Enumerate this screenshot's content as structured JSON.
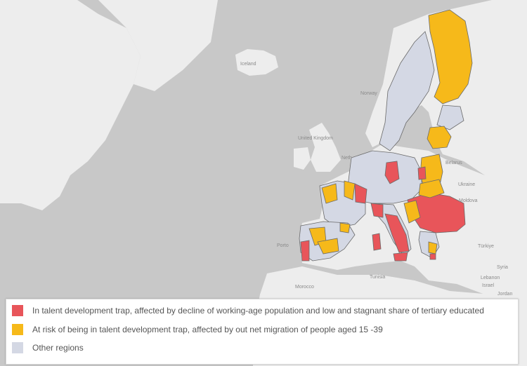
{
  "map": {
    "colors": {
      "sea": "#c8c8c8",
      "land": "#ededed",
      "talent_trap": "#e8555a",
      "at_risk": "#f6b91a",
      "other_regions": "#d4d8e4"
    },
    "place_labels": {
      "iceland": "Iceland",
      "norway": "Norway",
      "united_kingdom": "United Kingdom",
      "belarus": "Belarus",
      "ukraine": "Ukraine",
      "moldova": "Moldova",
      "turkiye": "Türkiye",
      "syria": "Syria",
      "lebanon": "Lebanon",
      "israel": "Israel",
      "jordan": "Jordan",
      "morocco": "Morocco",
      "tunisia": "Tunisia",
      "porto": "Porto",
      "neth": "Neth"
    }
  },
  "legend": {
    "items": [
      {
        "color": "#e8555a",
        "label": "In talent development trap, affected by decline of working-age population and low and stagnant share of tertiary educated"
      },
      {
        "color": "#f6b91a",
        "label": "At risk of being in talent development trap, affected by out net migration of people aged 15 -39"
      },
      {
        "color": "#d4d8e4",
        "label": "Other regions"
      }
    ]
  }
}
